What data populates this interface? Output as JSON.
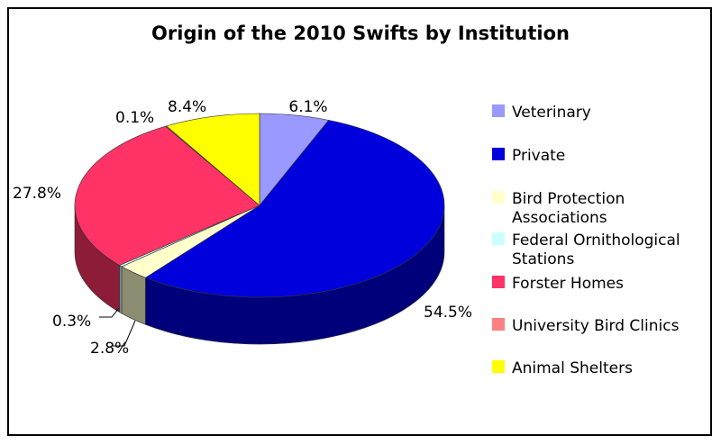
{
  "chart_data": {
    "type": "pie",
    "title": "Origin of the 2010 Swifts by Institution",
    "legend_position": "right",
    "slices": [
      {
        "name": "Veterinary",
        "value": 6.1,
        "label": "6.1%",
        "color": "#9999ff"
      },
      {
        "name": "Private",
        "value": 54.5,
        "label": "54.5%",
        "color": "#0000dd"
      },
      {
        "name": "Bird Protection Associations",
        "value": 2.8,
        "label": "2.8%",
        "color": "#ffffcc"
      },
      {
        "name": "Federal Ornithological Stations",
        "value": 0.3,
        "label": "0.3%",
        "color": "#ccffff"
      },
      {
        "name": "Forster Homes",
        "value": 27.8,
        "label": "27.8%",
        "color": "#ff3366"
      },
      {
        "name": "University Bird Clinics",
        "value": 0.1,
        "label": "0.1%",
        "color": "#ff8080"
      },
      {
        "name": "Animal Shelters",
        "value": 8.4,
        "label": "8.4%",
        "color": "#ffff00"
      }
    ],
    "legend": [
      {
        "lines": [
          "Veterinary"
        ],
        "color": "#9999ff"
      },
      {
        "lines": [
          "Private"
        ],
        "color": "#0000dd"
      },
      {
        "lines": [
          "Bird Protection",
          "Associations"
        ],
        "color": "#ffffcc"
      },
      {
        "lines": [
          "Federal Ornithological",
          "Stations"
        ],
        "color": "#ccffff"
      },
      {
        "lines": [
          "Forster Homes"
        ],
        "color": "#ff3366"
      },
      {
        "lines": [
          "University Bird Clinics"
        ],
        "color": "#ff8080"
      },
      {
        "lines": [
          "Animal Shelters"
        ],
        "color": "#ffff00"
      }
    ]
  }
}
